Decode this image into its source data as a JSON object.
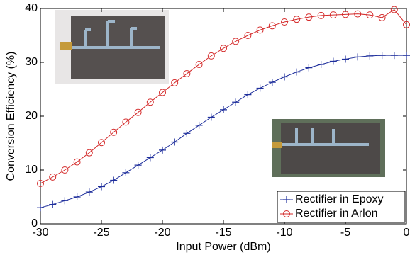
{
  "chart_data": {
    "type": "line",
    "x_label": "Input Power (dBm)",
    "y_label": "Conversion Efficiency (%)",
    "x": [
      -30,
      -29,
      -28,
      -27,
      -26,
      -25,
      -24,
      -23,
      -22,
      -21,
      -20,
      -19,
      -18,
      -17,
      -16,
      -15,
      -14,
      -13,
      -12,
      -11,
      -10,
      -9,
      -8,
      -7,
      -6,
      -5,
      -4,
      -3,
      -2,
      -1,
      0
    ],
    "series": [
      {
        "name": "Rectifier in Epoxy",
        "color": "#1f2f9c",
        "marker": "plus",
        "values": [
          3.0,
          3.6,
          4.3,
          5.0,
          5.9,
          6.9,
          8.1,
          9.5,
          10.9,
          12.3,
          13.7,
          15.2,
          16.8,
          18.3,
          19.8,
          21.2,
          22.6,
          24.0,
          25.2,
          26.3,
          27.3,
          28.2,
          29.0,
          29.6,
          30.2,
          30.6,
          31.0,
          31.2,
          31.3,
          31.3,
          31.3
        ]
      },
      {
        "name": "Rectifier in Arlon",
        "color": "#d42a2a",
        "marker": "circle",
        "values": [
          7.5,
          8.7,
          10.0,
          11.5,
          13.2,
          15.1,
          17.0,
          18.9,
          20.7,
          22.6,
          24.4,
          26.2,
          27.9,
          29.6,
          31.2,
          32.6,
          33.9,
          35.0,
          36.0,
          36.8,
          37.5,
          38.0,
          38.4,
          38.7,
          38.8,
          38.9,
          39.0,
          38.8,
          38.3,
          39.8,
          37.0
        ]
      }
    ],
    "xlim": [
      -30,
      0
    ],
    "xticks": [
      -30,
      -25,
      -20,
      -15,
      -10,
      -5,
      0
    ],
    "ylim": [
      0,
      40
    ],
    "yticks": [
      0,
      10,
      20,
      30,
      40
    ],
    "grid": false,
    "legend": "lower right"
  }
}
